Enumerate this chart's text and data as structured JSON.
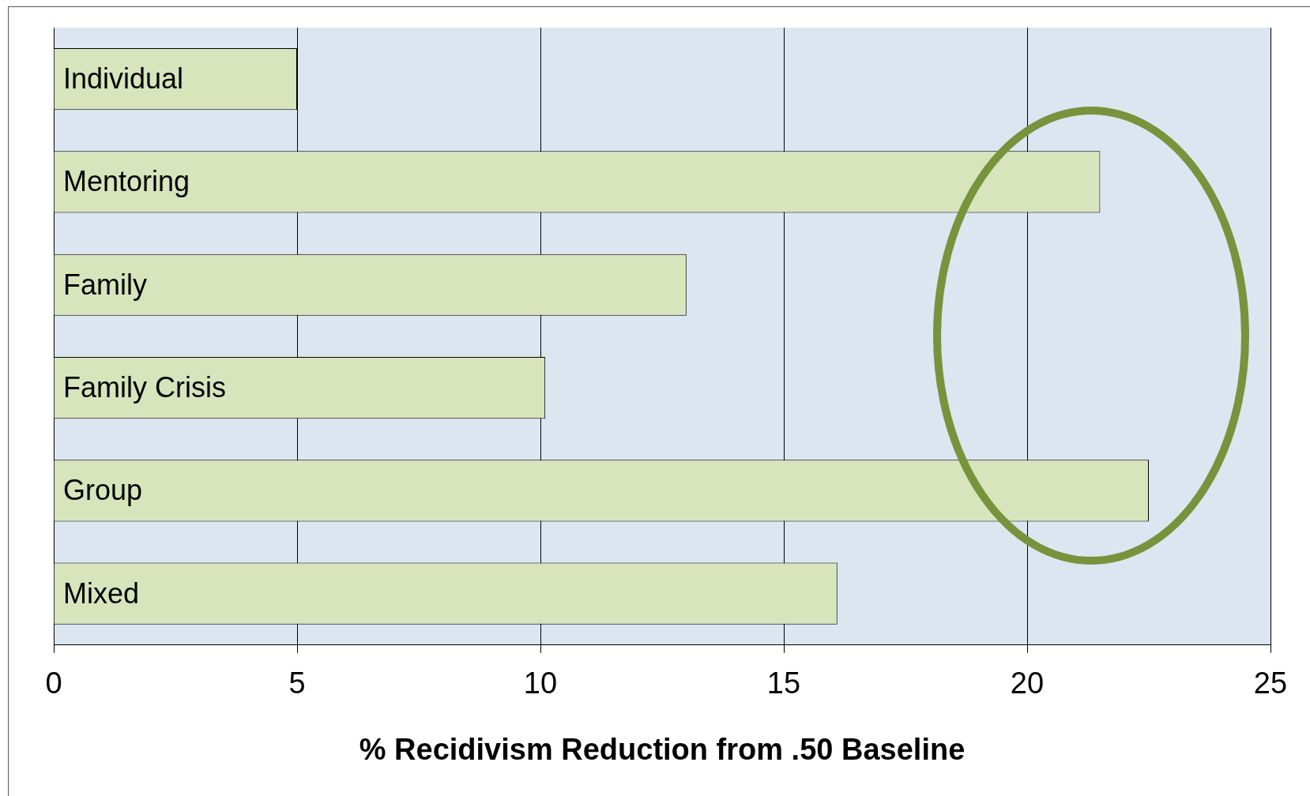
{
  "chart_data": {
    "type": "bar",
    "orientation": "horizontal",
    "xlabel": "% Recidivism Reduction from .50 Baseline",
    "categories": [
      "Individual",
      "Mentoring",
      "Family",
      "Family Crisis",
      "Group",
      "Mixed"
    ],
    "values": [
      5.0,
      21.5,
      13.0,
      10.1,
      22.5,
      16.1
    ],
    "color": "#d8e4bc",
    "xlim": [
      0,
      25
    ],
    "xticks": [
      0,
      5,
      10,
      15,
      20,
      25
    ],
    "grid": "x",
    "legend": false
  }
}
